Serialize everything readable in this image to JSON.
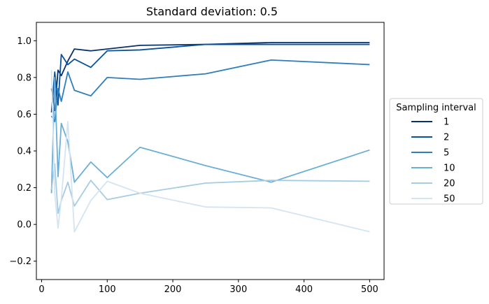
{
  "chart_data": {
    "type": "line",
    "title": "Standard deviation: 0.5",
    "xlabel": "",
    "ylabel": "",
    "xlim": [
      -8,
      522
    ],
    "ylim": [
      -0.3,
      1.1
    ],
    "x_ticks": [
      0,
      100,
      200,
      300,
      400,
      500
    ],
    "x_tick_labels": [
      "0",
      "100",
      "200",
      "300",
      "400",
      "500"
    ],
    "y_ticks": [
      -0.2,
      0.0,
      0.2,
      0.4,
      0.6,
      0.8,
      1.0
    ],
    "y_tick_labels": [
      "−0.2",
      "0.0",
      "0.2",
      "0.4",
      "0.6",
      "0.8",
      "1.0"
    ],
    "grid": false,
    "legend": {
      "title": "Sampling interval",
      "placement": "outside-right"
    },
    "series": [
      {
        "name": "1",
        "color": "#08306b",
        "x": [
          15,
          20,
          25,
          30,
          40,
          50,
          75,
          100,
          150,
          250,
          350,
          500
        ],
        "y": [
          0.74,
          0.62,
          0.84,
          0.81,
          0.89,
          0.955,
          0.945,
          0.955,
          0.975,
          0.98,
          0.99,
          0.99
        ]
      },
      {
        "name": "2",
        "color": "#08519c",
        "x": [
          15,
          20,
          25,
          30,
          40,
          50,
          75,
          100,
          150,
          250,
          350,
          500
        ],
        "y": [
          0.61,
          0.83,
          0.65,
          0.925,
          0.87,
          0.9,
          0.855,
          0.945,
          0.95,
          0.98,
          0.98,
          0.98
        ]
      },
      {
        "name": "5",
        "color": "#2f7ebc",
        "x": [
          15,
          20,
          25,
          30,
          40,
          50,
          75,
          100,
          150,
          250,
          350,
          500
        ],
        "y": [
          0.59,
          0.56,
          0.74,
          0.67,
          0.83,
          0.73,
          0.7,
          0.8,
          0.79,
          0.82,
          0.895,
          0.87
        ]
      },
      {
        "name": "10",
        "color": "#6baed6",
        "x": [
          15,
          20,
          25,
          30,
          40,
          50,
          75,
          100,
          150,
          250,
          350,
          500
        ],
        "y": [
          0.17,
          0.8,
          0.26,
          0.55,
          0.45,
          0.23,
          0.34,
          0.255,
          0.42,
          0.32,
          0.23,
          0.405
        ]
      },
      {
        "name": "20",
        "color": "#a5cce3",
        "x": [
          15,
          20,
          25,
          30,
          40,
          50,
          75,
          100,
          150,
          250,
          350,
          500
        ],
        "y": [
          0.19,
          0.33,
          0.06,
          0.13,
          0.23,
          0.1,
          0.24,
          0.135,
          0.17,
          0.225,
          0.24,
          0.235
        ]
      },
      {
        "name": "50",
        "color": "#d4e4f2",
        "x": [
          15,
          20,
          25,
          30,
          40,
          50,
          75,
          100,
          150,
          250,
          350,
          500
        ],
        "y": [
          0.84,
          0.17,
          -0.02,
          0.14,
          0.56,
          -0.04,
          0.13,
          0.235,
          0.17,
          0.095,
          0.09,
          -0.04
        ]
      }
    ]
  }
}
